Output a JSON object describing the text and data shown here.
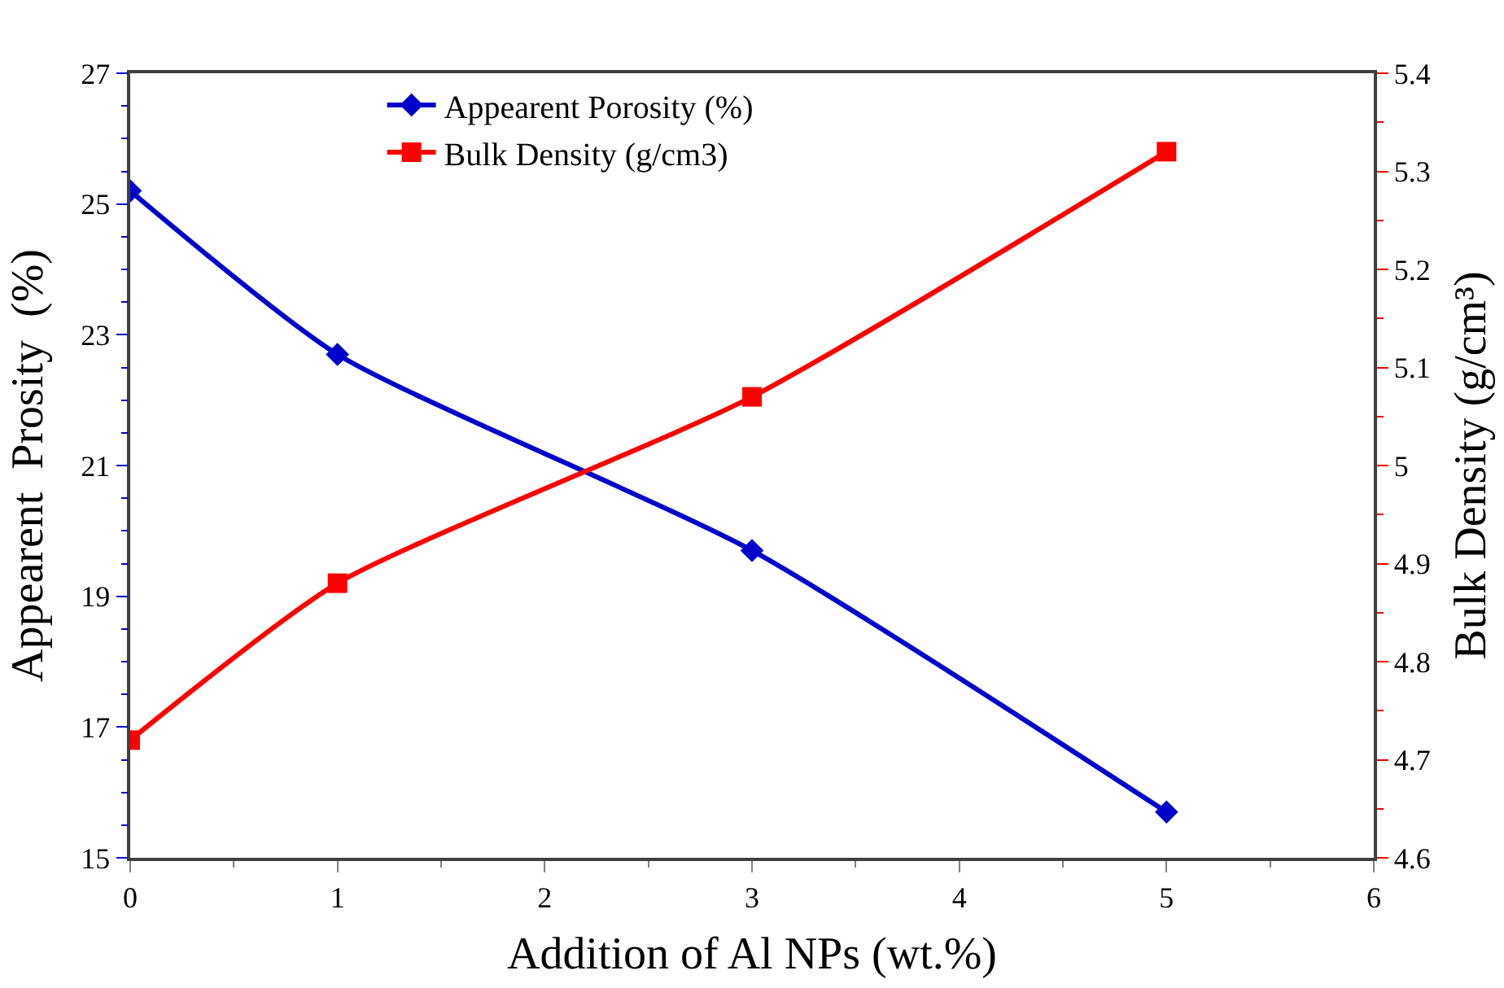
{
  "chart_data": {
    "type": "line",
    "xlabel": "Addition of Al NPs (wt.%)",
    "ylabel": "Appearent  Prosity  (%)",
    "y2label": "Bulk Density (g/cm³)",
    "x": [
      0,
      1,
      3,
      5
    ],
    "series": [
      {
        "name": "Appearent Porosity (%)",
        "color": "#0000cc",
        "marker": "diamond",
        "values": [
          25.2,
          22.7,
          19.7,
          15.7
        ]
      },
      {
        "name": "Bulk Density (g/cm3)",
        "color": "#ff0000",
        "marker": "square",
        "axis": "y2",
        "values": [
          4.72,
          4.88,
          5.07,
          5.32
        ]
      }
    ],
    "xlim": [
      0,
      6
    ],
    "xticks": [
      0,
      1,
      2,
      3,
      4,
      5,
      6
    ],
    "ylim": [
      15,
      27
    ],
    "yticks": [
      15,
      17,
      19,
      21,
      23,
      25,
      27
    ],
    "y2lim": [
      4.6,
      5.4
    ],
    "y2ticks": [
      4.6,
      4.7,
      4.8,
      4.9,
      5,
      5.1,
      5.2,
      5.3,
      5.4
    ],
    "legend": "top",
    "line_style": "solid"
  }
}
